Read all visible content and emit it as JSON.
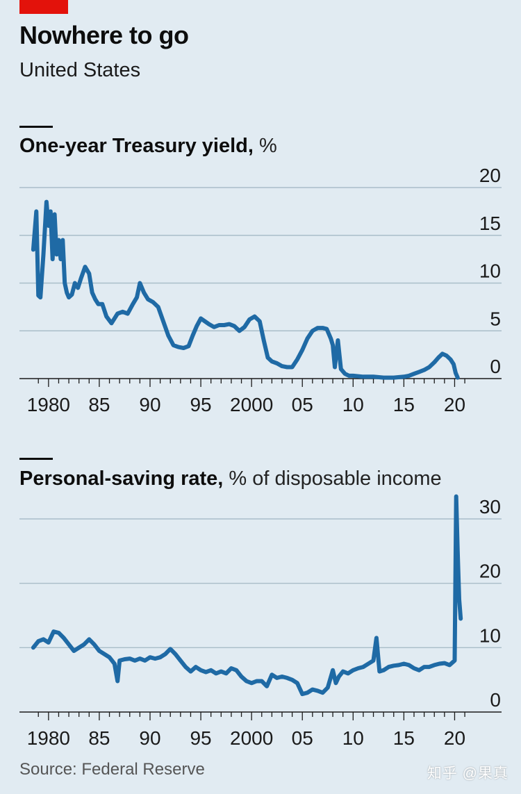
{
  "header": {
    "title": "Nowhere to go",
    "subtitle": "United States"
  },
  "colors": {
    "accent_red": "#e3120b",
    "line": "#1f6aa5",
    "grid": "#a9bdc9",
    "background": "#e1ebf2"
  },
  "chart_data": [
    {
      "type": "line",
      "title": "One-year Treasury yield,",
      "unit": "%",
      "ylim": [
        0,
        20
      ],
      "yticks": [
        0,
        5,
        10,
        15,
        20
      ],
      "xlim": [
        1978.3,
        2021.2
      ],
      "xtick_labels": [
        {
          "x": 1980,
          "label": "1980"
        },
        {
          "x": 1985,
          "label": "85"
        },
        {
          "x": 1990,
          "label": "90"
        },
        {
          "x": 1995,
          "label": "95"
        },
        {
          "x": 2000,
          "label": "2000"
        },
        {
          "x": 2005,
          "label": "05"
        },
        {
          "x": 2010,
          "label": "10"
        },
        {
          "x": 2015,
          "label": "15"
        },
        {
          "x": 2020,
          "label": "20"
        }
      ],
      "series": [
        {
          "name": "One-year Treasury yield",
          "x": [
            1978.5,
            1978.8,
            1979.0,
            1979.2,
            1979.5,
            1979.8,
            1980.0,
            1980.2,
            1980.4,
            1980.6,
            1980.8,
            1981.0,
            1981.2,
            1981.4,
            1981.6,
            1981.8,
            1982.0,
            1982.3,
            1982.6,
            1982.9,
            1983.2,
            1983.6,
            1984.0,
            1984.3,
            1984.6,
            1984.9,
            1985.3,
            1985.7,
            1986.2,
            1986.8,
            1987.3,
            1987.8,
            1988.3,
            1988.7,
            1989.0,
            1989.4,
            1989.8,
            1990.3,
            1990.8,
            1991.3,
            1991.8,
            1992.3,
            1992.8,
            1993.3,
            1993.8,
            1994.2,
            1994.6,
            1995.0,
            1995.4,
            1995.8,
            1996.3,
            1996.8,
            1997.3,
            1997.8,
            1998.3,
            1998.8,
            1999.3,
            1999.8,
            2000.3,
            2000.8,
            2001.2,
            2001.6,
            2002.0,
            2002.5,
            2003.0,
            2003.5,
            2004.0,
            2004.5,
            2005.0,
            2005.5,
            2006.0,
            2006.5,
            2007.0,
            2007.4,
            2007.8,
            2008.0,
            2008.2,
            2008.5,
            2008.8,
            2009.2,
            2009.6,
            2010.0,
            2011.0,
            2012.0,
            2013.0,
            2014.0,
            2015.0,
            2015.5,
            2016.0,
            2016.5,
            2017.0,
            2017.5,
            2018.0,
            2018.4,
            2018.8,
            2019.2,
            2019.6,
            2019.9,
            2020.1,
            2020.3
          ],
          "y": [
            13.5,
            17.5,
            8.7,
            8.5,
            13.0,
            18.5,
            16.0,
            17.5,
            12.5,
            17.2,
            13.0,
            14.5,
            12.5,
            14.5,
            10.0,
            9.0,
            8.5,
            8.8,
            10.0,
            9.5,
            10.5,
            11.7,
            11.0,
            9.0,
            8.3,
            7.8,
            7.8,
            6.5,
            5.8,
            6.8,
            7.0,
            6.8,
            7.8,
            8.5,
            10.0,
            9.0,
            8.3,
            8.0,
            7.5,
            6.0,
            4.5,
            3.5,
            3.3,
            3.2,
            3.4,
            4.5,
            5.5,
            6.3,
            6.0,
            5.7,
            5.4,
            5.6,
            5.6,
            5.7,
            5.5,
            5.0,
            5.4,
            6.2,
            6.5,
            6.0,
            4.0,
            2.2,
            1.8,
            1.6,
            1.3,
            1.2,
            1.2,
            2.0,
            3.0,
            4.2,
            5.0,
            5.3,
            5.3,
            5.2,
            4.2,
            3.5,
            1.2,
            4.0,
            1.0,
            0.5,
            0.3,
            0.3,
            0.2,
            0.2,
            0.1,
            0.1,
            0.2,
            0.3,
            0.5,
            0.7,
            0.9,
            1.2,
            1.7,
            2.2,
            2.6,
            2.4,
            2.0,
            1.5,
            0.6,
            0.1
          ]
        }
      ]
    },
    {
      "type": "line",
      "title": "Personal-saving rate,",
      "unit": "% of disposable income",
      "ylim": [
        0,
        30
      ],
      "yticks": [
        0,
        10,
        20,
        30
      ],
      "xlim": [
        1978.3,
        2021.2
      ],
      "xtick_labels": [
        {
          "x": 1980,
          "label": "1980"
        },
        {
          "x": 1985,
          "label": "85"
        },
        {
          "x": 1990,
          "label": "90"
        },
        {
          "x": 1995,
          "label": "95"
        },
        {
          "x": 2000,
          "label": "2000"
        },
        {
          "x": 2005,
          "label": "05"
        },
        {
          "x": 2010,
          "label": "10"
        },
        {
          "x": 2015,
          "label": "15"
        },
        {
          "x": 2020,
          "label": "20"
        }
      ],
      "series": [
        {
          "name": "Personal-saving rate",
          "x": [
            1978.5,
            1979.0,
            1979.5,
            1980.0,
            1980.5,
            1981.0,
            1981.5,
            1982.0,
            1982.5,
            1983.0,
            1983.5,
            1984.0,
            1984.5,
            1985.0,
            1985.5,
            1986.0,
            1986.5,
            1986.8,
            1987.0,
            1987.5,
            1988.0,
            1988.5,
            1989.0,
            1989.5,
            1990.0,
            1990.5,
            1991.0,
            1991.5,
            1992.0,
            1992.5,
            1993.0,
            1993.5,
            1994.0,
            1994.5,
            1995.0,
            1995.5,
            1996.0,
            1996.5,
            1997.0,
            1997.5,
            1998.0,
            1998.5,
            1999.0,
            1999.5,
            2000.0,
            2000.5,
            2001.0,
            2001.5,
            2002.0,
            2002.5,
            2003.0,
            2003.5,
            2004.0,
            2004.5,
            2005.0,
            2005.5,
            2006.0,
            2006.5,
            2007.0,
            2007.5,
            2008.0,
            2008.3,
            2008.6,
            2009.0,
            2009.5,
            2010.0,
            2010.5,
            2011.0,
            2011.5,
            2012.0,
            2012.3,
            2012.6,
            2013.0,
            2013.5,
            2014.0,
            2014.5,
            2015.0,
            2015.5,
            2016.0,
            2016.5,
            2017.0,
            2017.5,
            2018.0,
            2018.5,
            2019.0,
            2019.5,
            2020.0,
            2020.15,
            2020.3,
            2020.45,
            2020.6
          ],
          "y": [
            10.0,
            11.0,
            11.3,
            10.8,
            12.5,
            12.3,
            11.5,
            10.5,
            9.5,
            10.0,
            10.5,
            11.3,
            10.5,
            9.5,
            9.0,
            8.5,
            7.5,
            4.8,
            8.0,
            8.2,
            8.3,
            8.0,
            8.3,
            8.0,
            8.5,
            8.3,
            8.5,
            9.0,
            9.8,
            9.0,
            8.0,
            7.0,
            6.3,
            7.0,
            6.5,
            6.2,
            6.5,
            6.0,
            6.3,
            6.0,
            6.8,
            6.5,
            5.5,
            4.8,
            4.5,
            4.8,
            4.8,
            4.0,
            5.8,
            5.3,
            5.5,
            5.3,
            5.0,
            4.5,
            2.8,
            3.0,
            3.5,
            3.3,
            3.0,
            3.8,
            6.5,
            4.5,
            5.5,
            6.3,
            6.0,
            6.5,
            6.8,
            7.0,
            7.5,
            8.0,
            11.5,
            6.3,
            6.5,
            7.0,
            7.2,
            7.3,
            7.5,
            7.3,
            6.8,
            6.5,
            7.0,
            7.0,
            7.3,
            7.5,
            7.6,
            7.3,
            8.0,
            33.5,
            25.0,
            17.5,
            14.5
          ]
        }
      ]
    }
  ],
  "source": "Source: Federal Reserve",
  "watermark": "知乎 @果真"
}
